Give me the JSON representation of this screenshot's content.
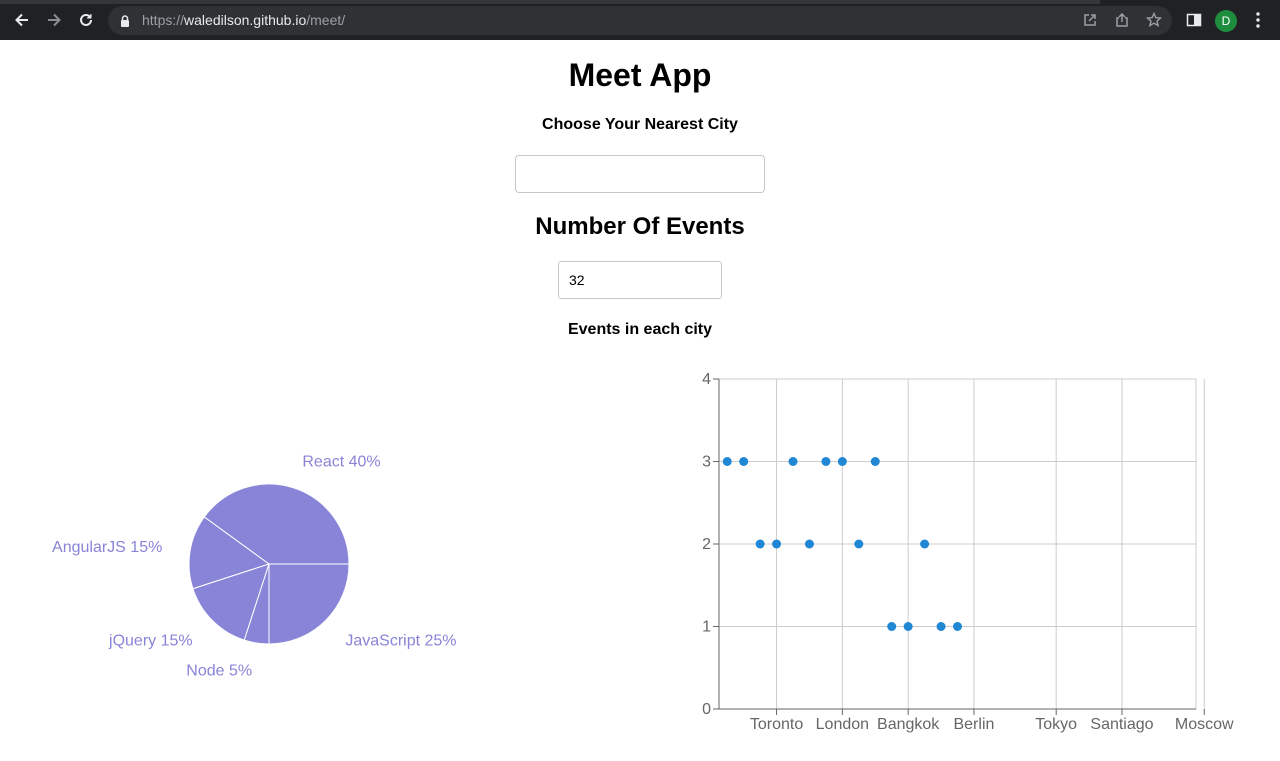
{
  "browser": {
    "url_scheme": "https://",
    "url_host": "waledilson.github.io",
    "url_path": "/meet/",
    "profile_initial": "D"
  },
  "app": {
    "title": "Meet App",
    "city_label": "Choose Your Nearest City",
    "city_value": "",
    "events_heading": "Number Of Events",
    "events_value": "32",
    "chart_heading": "Events in each city"
  },
  "colors": {
    "pie": "#8884d8",
    "scatter": "#1f87d3",
    "grid": "#cccccc",
    "axis": "#666666"
  },
  "chart_data": [
    {
      "type": "pie",
      "slices": [
        {
          "label": "React",
          "value": 40
        },
        {
          "label": "AngularJS",
          "value": 15
        },
        {
          "label": "jQuery",
          "value": 15
        },
        {
          "label": "Node",
          "value": 5
        },
        {
          "label": "JavaScript",
          "value": 25
        }
      ],
      "label_format": "{label} {value}%"
    },
    {
      "type": "scatter",
      "x_categories": [
        "Toronto",
        "London",
        "Bangkok",
        "Berlin",
        "Tokyo",
        "Santiago",
        "Moscow"
      ],
      "y_ticks": [
        0,
        1,
        2,
        3,
        4
      ],
      "ylim": [
        0,
        4
      ],
      "grid": true,
      "points_y": [
        3,
        3,
        2,
        2,
        3,
        2,
        3,
        3,
        2,
        3,
        1,
        1,
        2,
        1,
        1
      ]
    }
  ]
}
